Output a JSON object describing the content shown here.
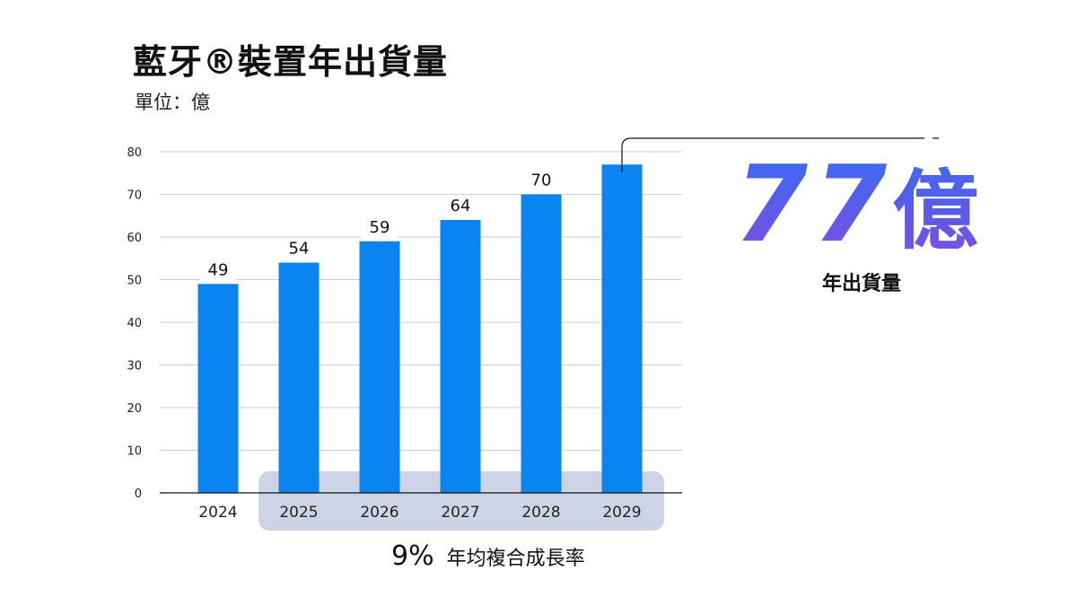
{
  "title": "藍牙®裝置年出貨量",
  "unit_label": "單位：億",
  "highlight": {
    "value": "77",
    "unit": "億",
    "label": "年出貨量"
  },
  "cagr": {
    "value": "9%",
    "label": "年均複合成長率"
  },
  "colors": {
    "bar": "#0a84f0",
    "cagr_band": "#cdd4e6",
    "grid": "#cccccc",
    "axis": "#111111"
  },
  "chart_data": {
    "type": "bar",
    "categories": [
      "2024",
      "2025",
      "2026",
      "2027",
      "2028",
      "2029"
    ],
    "values": [
      49,
      54,
      59,
      64,
      70,
      77
    ],
    "data_labels": [
      "49",
      "54",
      "59",
      "64",
      "70",
      ""
    ],
    "title": "藍牙®裝置年出貨量",
    "ylabel": "單位：億",
    "ylim": [
      0,
      80
    ],
    "yticks": [
      0,
      10,
      20,
      30,
      40,
      50,
      60,
      70,
      80
    ],
    "grid": true,
    "cagr_range": [
      "2025",
      "2029"
    ]
  }
}
